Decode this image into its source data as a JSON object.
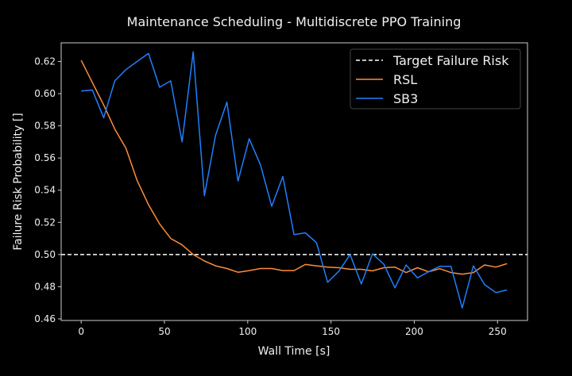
{
  "chart_data": {
    "type": "line",
    "title": "Maintenance Scheduling - Multidiscrete PPO Training",
    "xlabel": "Wall Time [s]",
    "ylabel": "Failure Risk Probability []",
    "xlim": [
      -12,
      268
    ],
    "ylim": [
      0.459,
      0.6316
    ],
    "xticks": [
      0,
      50,
      100,
      150,
      200,
      250
    ],
    "xtick_labels": [
      "0",
      "50",
      "100",
      "150",
      "200",
      "250"
    ],
    "yticks": [
      0.46,
      0.48,
      0.5,
      0.52,
      0.54,
      0.56,
      0.58,
      0.6,
      0.62
    ],
    "ytick_labels": [
      "0.46",
      "0.48",
      "0.50",
      "0.52",
      "0.54",
      "0.56",
      "0.58",
      "0.60",
      "0.62"
    ],
    "grid": false,
    "legend_position": "top-right",
    "hline": {
      "name": "Target Failure Risk",
      "value": 0.5,
      "color": "#ffffff",
      "style": "dashed"
    },
    "x": [
      0,
      6.7,
      13.5,
      20.2,
      26.9,
      33.6,
      40.4,
      47.1,
      53.8,
      60.6,
      67.3,
      74.0,
      80.7,
      87.5,
      94.2,
      100.9,
      107.7,
      114.4,
      121.1,
      127.8,
      134.6,
      141.3,
      148.0,
      154.8,
      161.5,
      168.2,
      174.9,
      181.7,
      188.4,
      195.1,
      201.9,
      208.6,
      215.3,
      222.0,
      228.8,
      235.5,
      242.2,
      249.0,
      255.7
    ],
    "series": [
      {
        "name": "RSL",
        "color": "#ff8c3a",
        "values": [
          0.6207,
          0.607,
          0.593,
          0.578,
          0.566,
          0.546,
          0.531,
          0.519,
          0.51,
          0.506,
          0.5,
          0.496,
          0.493,
          0.4913,
          0.489,
          0.49,
          0.4913,
          0.4913,
          0.49,
          0.49,
          0.4938,
          0.493,
          0.4922,
          0.4918,
          0.4908,
          0.4908,
          0.4898,
          0.4918,
          0.4922,
          0.4888,
          0.4918,
          0.4893,
          0.4912,
          0.4888,
          0.4878,
          0.4888,
          0.4935,
          0.4922,
          0.4943
        ]
      },
      {
        "name": "SB3",
        "color": "#1f7fff",
        "values": [
          0.6016,
          0.6023,
          0.585,
          0.608,
          0.615,
          0.62,
          0.625,
          0.604,
          0.608,
          0.57,
          0.626,
          0.5365,
          0.574,
          0.5947,
          0.5457,
          0.572,
          0.5557,
          0.53,
          0.5485,
          0.5124,
          0.5135,
          0.5074,
          0.4827,
          0.4897,
          0.5,
          0.4817,
          0.5004,
          0.494,
          0.4793,
          0.4935,
          0.4855,
          0.4893,
          0.4927,
          0.4927,
          0.4668,
          0.493,
          0.4813,
          0.4763,
          0.478
        ]
      }
    ],
    "legend": [
      "Target Failure Risk",
      "RSL",
      "SB3"
    ]
  }
}
